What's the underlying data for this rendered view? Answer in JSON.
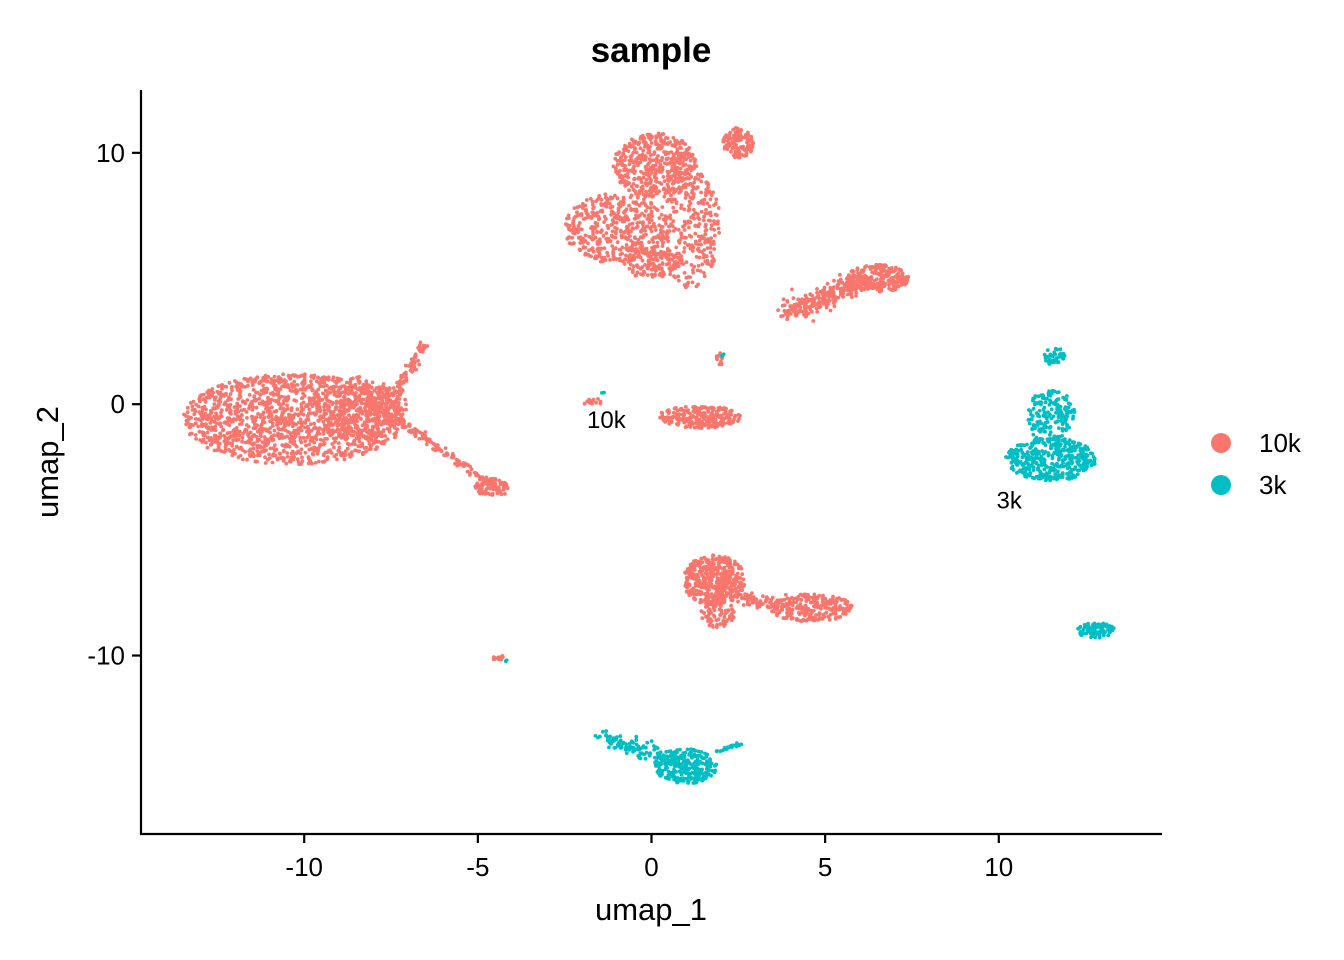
{
  "chart_data": {
    "type": "scatter",
    "title": "sample",
    "xlabel": "umap_1",
    "ylabel": "umap_2",
    "xlim": [
      -14.7,
      14.7
    ],
    "ylim": [
      -17.1,
      12.5
    ],
    "x_ticks": [
      -10,
      -5,
      0,
      5,
      10
    ],
    "x_tick_labels": [
      "-10",
      "-5",
      "0",
      "5",
      "10"
    ],
    "y_ticks": [
      10,
      0,
      -10
    ],
    "y_tick_labels": [
      "10",
      "0",
      "-10"
    ],
    "grid": false,
    "legend": {
      "position": "right",
      "entries": [
        "10k",
        "3k"
      ]
    },
    "series": [
      {
        "name": "10k",
        "color": "#F8766D"
      },
      {
        "name": "3k",
        "color": "#00BFC4"
      }
    ],
    "clusters": [
      {
        "series": "10k",
        "kind": "ellipse",
        "cx": -10.3,
        "cy": -0.6,
        "rx": 3.2,
        "ry": 1.8,
        "n": 1400
      },
      {
        "series": "10k",
        "kind": "ellipse",
        "cx": -8.4,
        "cy": -0.2,
        "rx": 1.2,
        "ry": 1.3,
        "n": 300
      },
      {
        "series": "10k",
        "kind": "ellipse",
        "cx": -7.5,
        "cy": 0.0,
        "rx": 0.5,
        "ry": 0.8,
        "n": 80
      },
      {
        "series": "10k",
        "kind": "line",
        "x1": -7.3,
        "y1": 0.6,
        "x2": -6.5,
        "y2": 2.4,
        "w": 0.15,
        "n": 60
      },
      {
        "series": "10k",
        "kind": "line",
        "x1": -7.3,
        "y1": -0.6,
        "x2": -4.3,
        "y2": -3.5,
        "w": 0.15,
        "n": 140
      },
      {
        "series": "10k",
        "kind": "ellipse",
        "cx": -4.6,
        "cy": -3.3,
        "rx": 0.5,
        "ry": 0.35,
        "n": 60
      },
      {
        "series": "10k",
        "kind": "ellipse",
        "cx": 0.1,
        "cy": 9.5,
        "rx": 1.2,
        "ry": 1.3,
        "n": 450
      },
      {
        "series": "10k",
        "kind": "ellipse",
        "cx": -1.0,
        "cy": 7.0,
        "rx": 1.5,
        "ry": 1.4,
        "n": 450
      },
      {
        "series": "10k",
        "kind": "ellipse",
        "cx": 1.1,
        "cy": 7.0,
        "rx": 0.9,
        "ry": 2.4,
        "n": 300
      },
      {
        "series": "10k",
        "kind": "ellipse",
        "cx": 0.0,
        "cy": 5.6,
        "rx": 0.8,
        "ry": 0.6,
        "n": 120
      },
      {
        "series": "10k",
        "kind": "ellipse",
        "cx": 2.5,
        "cy": 10.4,
        "rx": 0.45,
        "ry": 0.6,
        "n": 120
      },
      {
        "series": "10k",
        "kind": "ellipse",
        "cx": 6.5,
        "cy": 5.0,
        "rx": 0.9,
        "ry": 0.55,
        "n": 250
      },
      {
        "series": "10k",
        "kind": "line",
        "x1": 3.8,
        "y1": 3.6,
        "x2": 6.0,
        "y2": 4.9,
        "w": 0.4,
        "n": 260
      },
      {
        "series": "10k",
        "kind": "ellipse",
        "cx": 1.4,
        "cy": -0.5,
        "rx": 1.2,
        "ry": 0.45,
        "n": 250
      },
      {
        "series": "10k",
        "kind": "ellipse",
        "cx": -1.7,
        "cy": 0.1,
        "rx": 0.35,
        "ry": 0.12,
        "n": 12
      },
      {
        "series": "10k",
        "kind": "ellipse",
        "cx": 1.95,
        "cy": 1.8,
        "rx": 0.1,
        "ry": 0.3,
        "n": 12
      },
      {
        "series": "10k",
        "kind": "ellipse",
        "cx": 1.8,
        "cy": -7.0,
        "rx": 0.9,
        "ry": 1.0,
        "n": 450
      },
      {
        "series": "10k",
        "kind": "ellipse",
        "cx": 1.9,
        "cy": -8.3,
        "rx": 0.5,
        "ry": 0.6,
        "n": 80
      },
      {
        "series": "10k",
        "kind": "ellipse",
        "cx": 4.6,
        "cy": -8.1,
        "rx": 1.2,
        "ry": 0.55,
        "n": 250
      },
      {
        "series": "10k",
        "kind": "line",
        "x1": 2.6,
        "y1": -7.7,
        "x2": 3.6,
        "y2": -7.9,
        "w": 0.3,
        "n": 60
      },
      {
        "series": "10k",
        "kind": "ellipse",
        "cx": -4.4,
        "cy": -10.1,
        "rx": 0.18,
        "ry": 0.12,
        "n": 14
      },
      {
        "series": "3k",
        "kind": "ellipse",
        "cx": 11.5,
        "cy": -2.2,
        "rx": 1.3,
        "ry": 0.85,
        "n": 400
      },
      {
        "series": "3k",
        "kind": "ellipse",
        "cx": 11.5,
        "cy": -0.5,
        "rx": 0.7,
        "ry": 1.1,
        "n": 180
      },
      {
        "series": "3k",
        "kind": "ellipse",
        "cx": 11.6,
        "cy": 1.9,
        "rx": 0.3,
        "ry": 0.35,
        "n": 40
      },
      {
        "series": "3k",
        "kind": "ellipse",
        "cx": 12.8,
        "cy": -9.0,
        "rx": 0.55,
        "ry": 0.3,
        "n": 90
      },
      {
        "series": "3k",
        "kind": "ellipse",
        "cx": 1.0,
        "cy": -14.4,
        "rx": 0.9,
        "ry": 0.7,
        "n": 250
      },
      {
        "series": "3k",
        "kind": "line",
        "x1": -1.5,
        "y1": -13.2,
        "x2": 0.9,
        "y2": -14.4,
        "w": 0.35,
        "n": 140
      },
      {
        "series": "3k",
        "kind": "line",
        "x1": 1.8,
        "y1": -13.8,
        "x2": 2.6,
        "y2": -13.5,
        "w": 0.1,
        "n": 20
      },
      {
        "series": "3k",
        "kind": "ellipse",
        "cx": -1.4,
        "cy": 0.45,
        "rx": 0.05,
        "ry": 0.05,
        "n": 2
      },
      {
        "series": "3k",
        "kind": "ellipse",
        "cx": 2.05,
        "cy": 2.0,
        "rx": 0.05,
        "ry": 0.15,
        "n": 3
      },
      {
        "series": "3k",
        "kind": "ellipse",
        "cx": -4.2,
        "cy": -10.2,
        "rx": 0.03,
        "ry": 0.03,
        "n": 2
      }
    ],
    "annotations": [
      {
        "text": "10k",
        "x": -1.3,
        "y": -0.7
      },
      {
        "text": "3k",
        "x": 10.3,
        "y": -3.9
      }
    ]
  }
}
